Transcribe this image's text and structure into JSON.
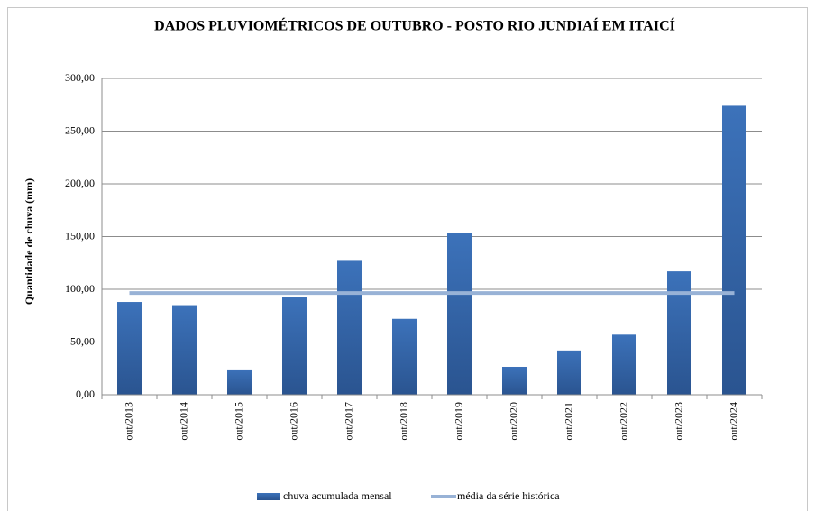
{
  "chart_data": {
    "type": "bar",
    "title": "DADOS PLUVIOMÉTRICOS DE OUTUBRO - POSTO RIO JUNDIAÍ EM ITAICÍ",
    "y_label": "Quantidade de chuva (mm)",
    "categories": [
      "out/2013",
      "out/2014",
      "out/2015",
      "out/2016",
      "out/2017",
      "out/2018",
      "out/2019",
      "out/2020",
      "out/2021",
      "out/2022",
      "out/2023",
      "out/2024"
    ],
    "series": [
      {
        "name": "chuva acumulada mensal",
        "type": "bar",
        "color": "#3a6db3",
        "values": [
          88,
          85,
          24,
          93,
          127,
          72,
          153,
          26.5,
          42,
          57,
          117,
          274
        ]
      },
      {
        "name": "média da série histórica",
        "type": "line",
        "color": "#98b2d6",
        "values": [
          96.5,
          96.5,
          96.5,
          96.5,
          96.5,
          96.5,
          96.5,
          96.5,
          96.5,
          96.5,
          96.5,
          96.5
        ]
      }
    ],
    "ylim": [
      0,
      300
    ],
    "yticks": [
      {
        "value": 0,
        "label": "0,00"
      },
      {
        "value": 50,
        "label": "50,00"
      },
      {
        "value": 100,
        "label": "100,00"
      },
      {
        "value": 150,
        "label": "150,00"
      },
      {
        "value": 200,
        "label": "200,00"
      },
      {
        "value": 250,
        "label": "250,00"
      },
      {
        "value": 300,
        "label": "300,00"
      }
    ],
    "grid": true,
    "legend": "bottom"
  }
}
